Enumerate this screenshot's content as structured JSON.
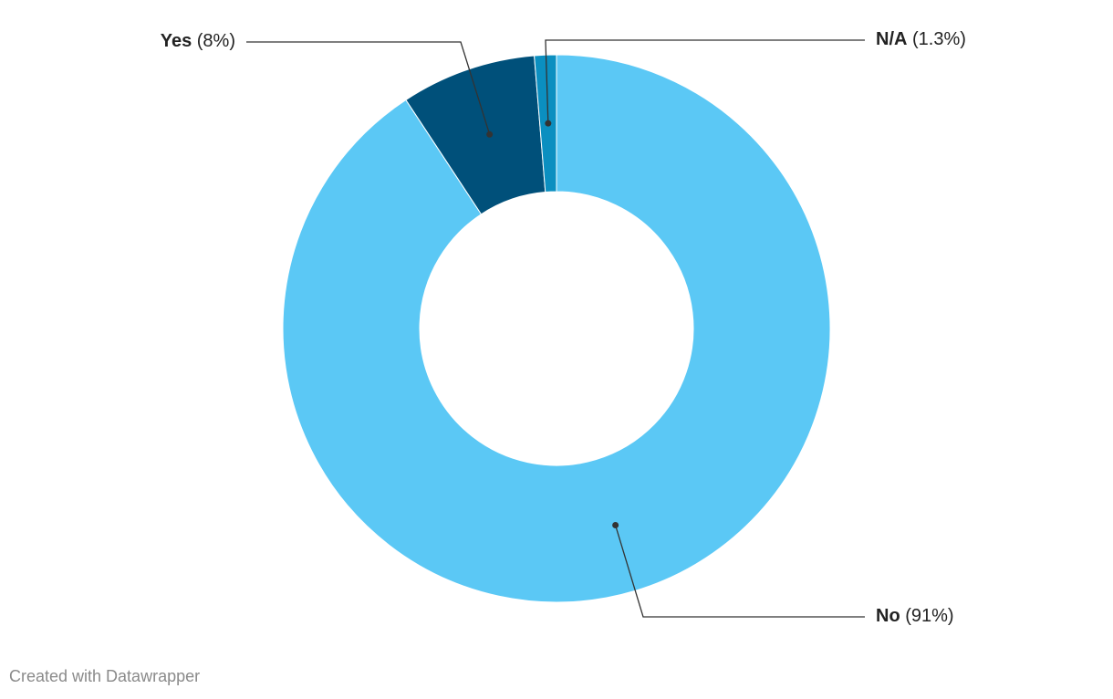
{
  "chart_data": {
    "type": "pie",
    "categories": [
      "No",
      "Yes",
      "N/A"
    ],
    "values": [
      91,
      8,
      1.3
    ],
    "value_labels": [
      "(91%)",
      "(8%)",
      "(1.3%)"
    ],
    "colors": [
      "#5bc8f5",
      "#00507a",
      "#0b8fc0"
    ],
    "credit": "Created with Datawrapper"
  }
}
